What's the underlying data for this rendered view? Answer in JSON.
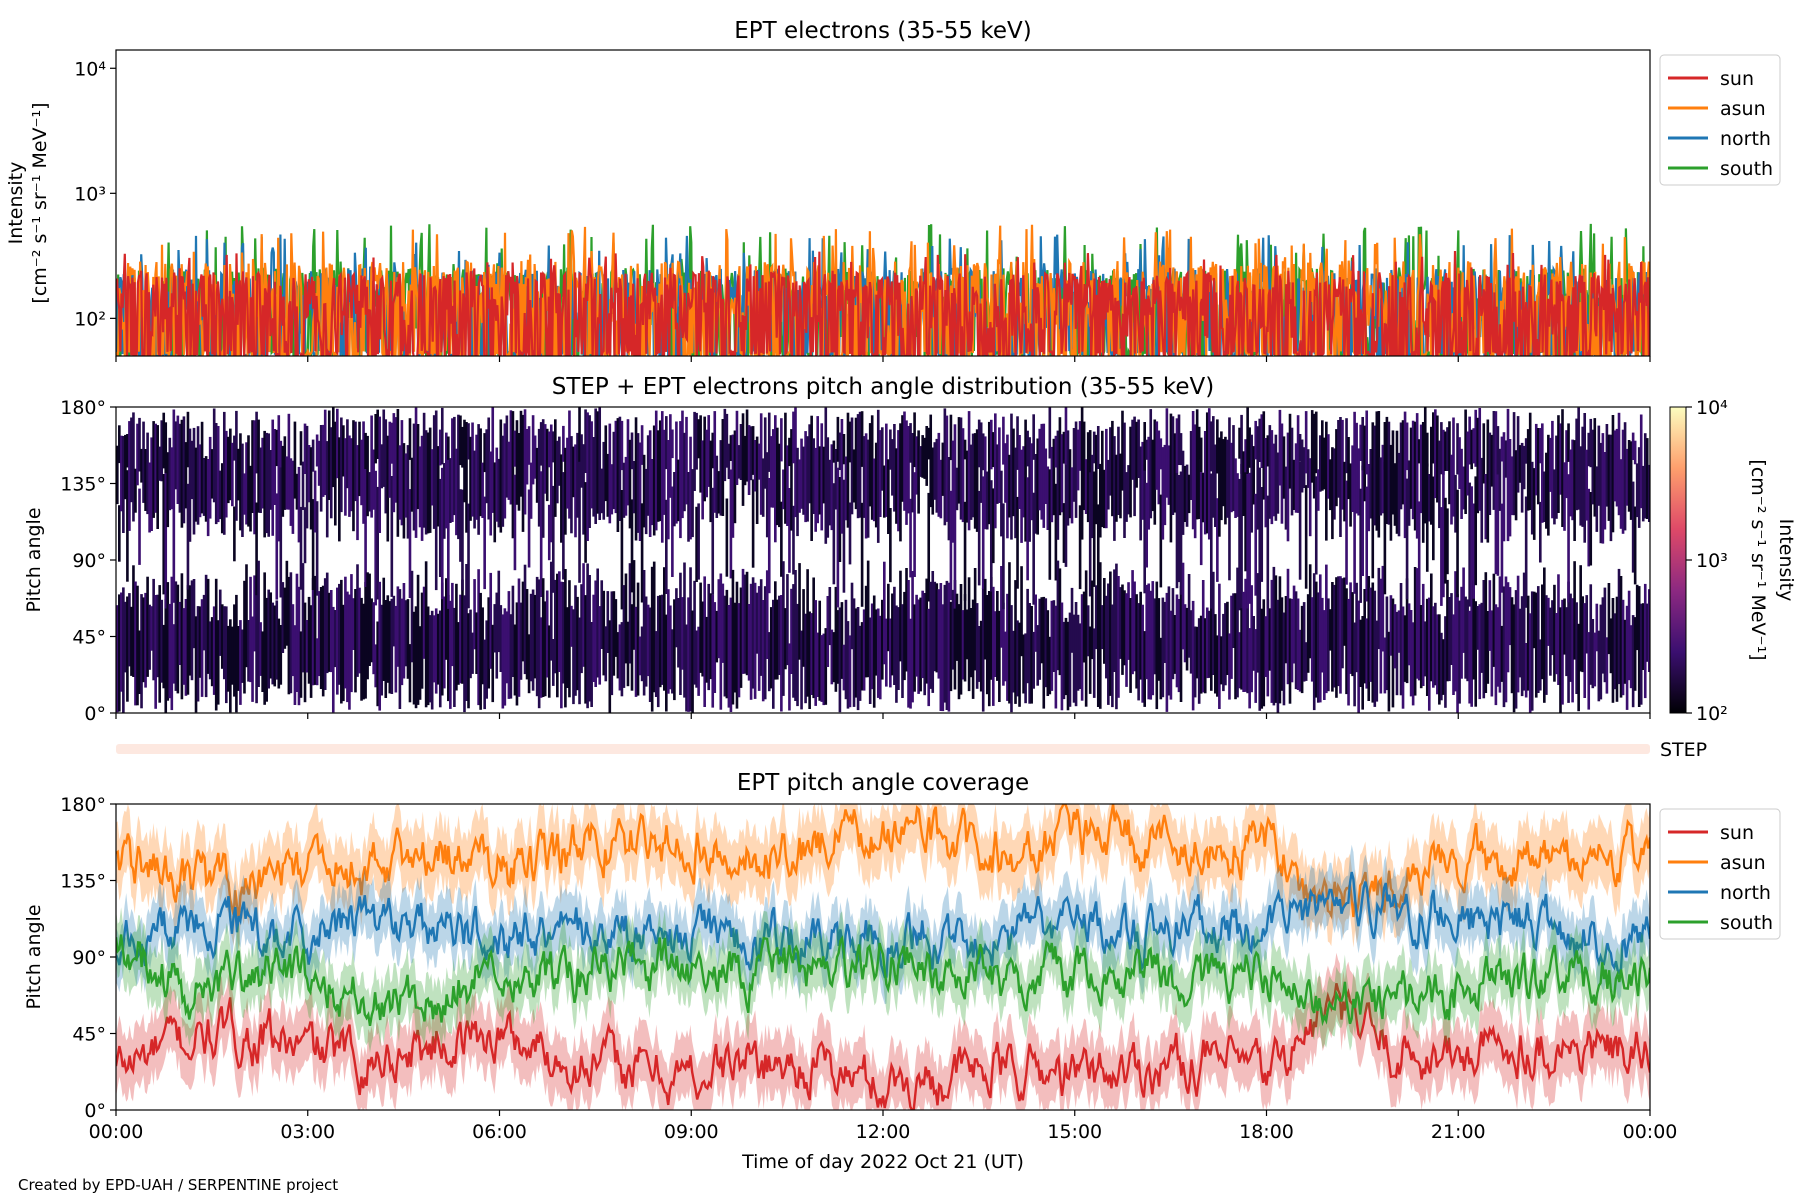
{
  "colors": {
    "sun": "#d62728",
    "asun": "#ff7f0e",
    "north": "#1f77b4",
    "south": "#2ca02c",
    "step_bar": "#fde8e0"
  },
  "credit": "Created by EPD-UAH / SERPENTINE project",
  "chart_data": [
    {
      "type": "line",
      "title": "EPT electrons (35-55 keV)",
      "ylabel_line1": "Intensity",
      "ylabel_line2": "[cm⁻² s⁻¹ sr⁻¹ MeV⁻¹]",
      "yscale": "log",
      "ylim": [
        50,
        14000
      ],
      "ytick_labels": [
        "10⁴",
        "10³",
        "10²"
      ],
      "ytick_values": [
        10000,
        1000,
        100
      ],
      "x_range_hours": [
        0,
        24
      ],
      "legend": {
        "placement": "outside-right-top",
        "entries": [
          "sun",
          "asun",
          "north",
          "south"
        ]
      },
      "series": [
        {
          "name": "sun",
          "baseline": 130,
          "peak": 350
        },
        {
          "name": "asun",
          "baseline": 160,
          "peak": 560
        },
        {
          "name": "north",
          "baseline": 140,
          "peak": 470
        },
        {
          "name": "south",
          "baseline": 140,
          "peak": 570
        }
      ]
    },
    {
      "type": "heatmap",
      "title": "STEP + EPT electrons pitch angle distribution (35-55 keV)",
      "ylabel": "Pitch angle",
      "ylim": [
        0,
        180
      ],
      "ytick_labels": [
        "180°",
        "135°",
        "90°",
        "45°",
        "0°"
      ],
      "ytick_values": [
        180,
        135,
        90,
        45,
        0
      ],
      "x_range_hours": [
        0,
        24
      ],
      "colorbar": {
        "label": "Intensity",
        "units": "[cm⁻² s⁻¹ sr⁻¹ MeV⁻¹]",
        "scale": "log",
        "range": [
          100,
          10000
        ],
        "tick_labels": [
          "10⁴",
          "10³",
          "10²"
        ],
        "tick_values": [
          10000,
          1000,
          100
        ]
      },
      "step_label": "STEP"
    },
    {
      "type": "line",
      "title": "EPT pitch angle coverage",
      "ylabel": "Pitch angle",
      "ylim": [
        0,
        180
      ],
      "ytick_labels": [
        "180°",
        "135°",
        "90°",
        "45°",
        "0°"
      ],
      "ytick_values": [
        180,
        135,
        90,
        45,
        0
      ],
      "xlabel": "Time of day 2022 Oct 21 (UT)",
      "xtick_labels": [
        "00:00",
        "03:00",
        "06:00",
        "09:00",
        "12:00",
        "15:00",
        "18:00",
        "21:00",
        "00:00"
      ],
      "xtick_hours": [
        0,
        3,
        6,
        9,
        12,
        15,
        18,
        21,
        24
      ],
      "legend": {
        "placement": "outside-right-top",
        "entries": [
          "sun",
          "asun",
          "north",
          "south"
        ]
      },
      "series": [
        {
          "name": "sun",
          "hours": [
            0,
            1,
            2,
            3,
            4,
            5,
            6,
            7,
            8,
            9,
            10,
            11,
            12,
            13,
            14,
            15,
            16,
            17,
            18,
            19,
            20,
            21,
            22,
            23,
            24
          ],
          "values": [
            25,
            40,
            45,
            35,
            30,
            40,
            45,
            30,
            25,
            20,
            30,
            25,
            15,
            20,
            25,
            20,
            25,
            30,
            20,
            60,
            35,
            30,
            40,
            35,
            30
          ],
          "band_halfwidth": 18
        },
        {
          "name": "asun",
          "hours": [
            0,
            1,
            2,
            3,
            4,
            5,
            6,
            7,
            8,
            9,
            10,
            11,
            12,
            13,
            14,
            15,
            16,
            17,
            18,
            19,
            20,
            21,
            22,
            23,
            24
          ],
          "values": [
            150,
            135,
            130,
            145,
            140,
            155,
            140,
            150,
            160,
            160,
            145,
            155,
            165,
            160,
            150,
            165,
            155,
            150,
            160,
            115,
            130,
            145,
            150,
            145,
            155
          ],
          "band_halfwidth": 18
        },
        {
          "name": "north",
          "hours": [
            0,
            1,
            2,
            3,
            4,
            5,
            6,
            7,
            8,
            9,
            10,
            11,
            12,
            13,
            14,
            15,
            16,
            17,
            18,
            19,
            20,
            21,
            22,
            23,
            24
          ],
          "values": [
            90,
            110,
            105,
            100,
            115,
            105,
            100,
            105,
            100,
            100,
            105,
            100,
            100,
            105,
            100,
            110,
            105,
            110,
            100,
            130,
            120,
            115,
            110,
            100,
            100
          ],
          "band_halfwidth": 16
        },
        {
          "name": "south",
          "hours": [
            0,
            1,
            2,
            3,
            4,
            5,
            6,
            7,
            8,
            9,
            10,
            11,
            12,
            13,
            14,
            15,
            16,
            17,
            18,
            19,
            20,
            21,
            22,
            23,
            24
          ],
          "values": [
            100,
            70,
            75,
            80,
            70,
            65,
            85,
            80,
            85,
            85,
            80,
            80,
            90,
            80,
            75,
            80,
            80,
            75,
            80,
            55,
            65,
            70,
            75,
            80,
            80
          ],
          "band_halfwidth": 16
        }
      ]
    }
  ]
}
